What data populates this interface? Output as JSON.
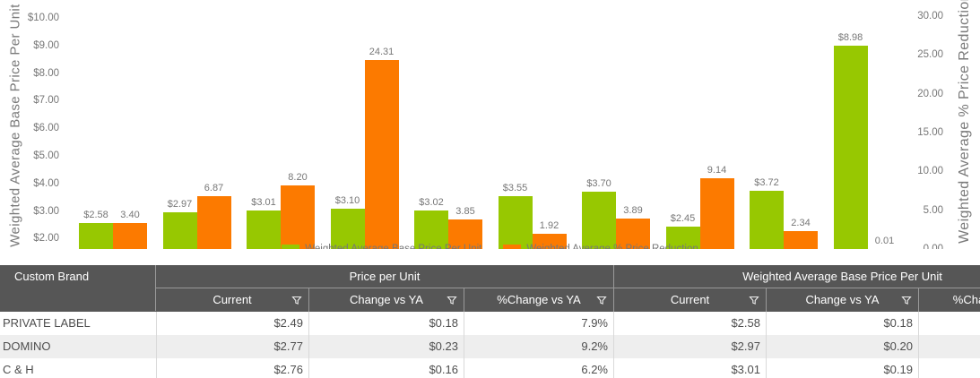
{
  "colors": {
    "green": "#97C801",
    "orange": "#FC7A00",
    "header_bg": "#565656",
    "alt_row_bg": "#EEEEEE",
    "axis_text": "#777777"
  },
  "chart_data": {
    "type": "bar",
    "subtype": "clustered-dual-axis",
    "grid": false,
    "legend_position": "bottom",
    "left_axis": {
      "title": "Weighted Average Base Price Per Unit",
      "ticks": [
        "$10.00",
        "$9.00",
        "$8.00",
        "$7.00",
        "$6.00",
        "$5.00",
        "$4.00",
        "$3.00",
        "$2.00"
      ],
      "range": [
        2,
        10
      ]
    },
    "right_axis": {
      "title": "Weighted Average % Price Reduction",
      "ticks": [
        "30.00",
        "25.00",
        "20.00",
        "15.00",
        "10.00",
        "5.00",
        "0.00"
      ],
      "range": [
        0,
        30
      ]
    },
    "series": [
      {
        "name": "Weighted Average Base Price Per Unit",
        "yaxis": "left",
        "color": "#97C801",
        "values": [
          2.58,
          2.97,
          3.01,
          3.1,
          3.02,
          3.55,
          3.7,
          2.45,
          3.72,
          8.98
        ],
        "labels": [
          "$2.58",
          "$2.97",
          "$3.01",
          "$3.10",
          "$3.02",
          "$3.55",
          "$3.70",
          "$2.45",
          "$3.72",
          "$8.98"
        ]
      },
      {
        "name": "Weighted Average % Price Reduction",
        "yaxis": "right",
        "color": "#FC7A00",
        "values": [
          3.4,
          6.87,
          8.2,
          24.31,
          3.85,
          1.92,
          3.89,
          9.14,
          2.34,
          0.01
        ],
        "labels": [
          "3.40",
          "6.87",
          "8.20",
          "24.31",
          "3.85",
          "1.92",
          "3.89",
          "9.14",
          "2.34",
          "0.01"
        ]
      }
    ]
  },
  "table": {
    "brand_header": "Custom Brand",
    "groups": [
      {
        "label": "Price per Unit",
        "columns": [
          {
            "label": "Current"
          },
          {
            "label": "Change vs YA"
          },
          {
            "label": "%Change vs YA"
          }
        ]
      },
      {
        "label": "Weighted Average Base Price Per Unit",
        "columns": [
          {
            "label": "Current"
          },
          {
            "label": "Change vs YA"
          },
          {
            "label": "%Change vs YA"
          }
        ]
      }
    ],
    "rows": [
      {
        "brand": "PRIVATE LABEL",
        "values": [
          "$2.49",
          "$0.18",
          "7.9%",
          "$2.58",
          "$0.18",
          ""
        ]
      },
      {
        "brand": "DOMINO",
        "values": [
          "$2.77",
          "$0.23",
          "9.2%",
          "$2.97",
          "$0.20",
          ""
        ]
      },
      {
        "brand": "C & H",
        "values": [
          "$2.76",
          "$0.16",
          "6.2%",
          "$3.01",
          "$0.19",
          ""
        ]
      }
    ]
  }
}
